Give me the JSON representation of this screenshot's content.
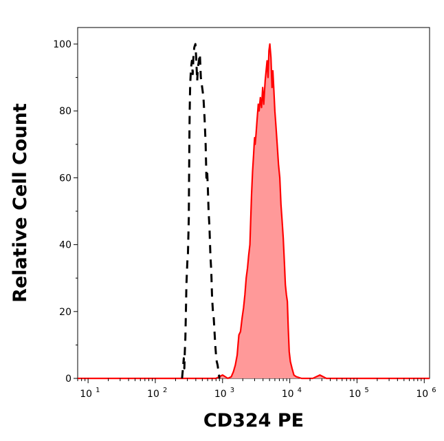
{
  "chart_data": {
    "type": "area",
    "title": "",
    "xlabel": "CD324 PE",
    "ylabel": "Relative Cell Count",
    "x_scale": "log",
    "xlim": [
      7,
      1200000
    ],
    "ylim": [
      -1,
      101
    ],
    "grid": false,
    "x_ticks": [
      {
        "value": 10,
        "base": "10",
        "exp": "1"
      },
      {
        "value": 100,
        "base": "10",
        "exp": "2"
      },
      {
        "value": 1000,
        "base": "10",
        "exp": "3"
      },
      {
        "value": 10000,
        "base": "10",
        "exp": "4"
      },
      {
        "value": 100000,
        "base": "10",
        "exp": "5"
      },
      {
        "value": 1000000,
        "base": "10",
        "exp": "6"
      }
    ],
    "y_ticks": [
      0,
      20,
      40,
      60,
      80,
      100
    ],
    "series": [
      {
        "role": "control",
        "style": "dashed",
        "color": "#000000",
        "points": [
          [
            250,
            0
          ],
          [
            260,
            4
          ],
          [
            265,
            6
          ],
          [
            270,
            3
          ],
          [
            275,
            8
          ],
          [
            280,
            12
          ],
          [
            285,
            20
          ],
          [
            290,
            28
          ],
          [
            300,
            35
          ],
          [
            305,
            36
          ],
          [
            310,
            42
          ],
          [
            315,
            48
          ],
          [
            318,
            60
          ],
          [
            322,
            75
          ],
          [
            325,
            80
          ],
          [
            330,
            88
          ],
          [
            340,
            93
          ],
          [
            350,
            95
          ],
          [
            360,
            91
          ],
          [
            370,
            97
          ],
          [
            380,
            99
          ],
          [
            395,
            100
          ],
          [
            405,
            96
          ],
          [
            420,
            89
          ],
          [
            430,
            93
          ],
          [
            445,
            95
          ],
          [
            460,
            97
          ],
          [
            475,
            90
          ],
          [
            490,
            88
          ],
          [
            505,
            86
          ],
          [
            520,
            84
          ],
          [
            540,
            78
          ],
          [
            560,
            70
          ],
          [
            575,
            60
          ],
          [
            590,
            62
          ],
          [
            605,
            57
          ],
          [
            620,
            50
          ],
          [
            640,
            45
          ],
          [
            660,
            37
          ],
          [
            680,
            32
          ],
          [
            700,
            24
          ],
          [
            720,
            20
          ],
          [
            740,
            18
          ],
          [
            760,
            14
          ],
          [
            780,
            10
          ],
          [
            800,
            7
          ],
          [
            820,
            5
          ],
          [
            845,
            4
          ],
          [
            870,
            2
          ],
          [
            900,
            0
          ]
        ]
      },
      {
        "role": "sample",
        "style": "filled",
        "color": "#ff0000",
        "fill": "#ff9999",
        "points": [
          [
            7,
            0
          ],
          [
            20,
            0
          ],
          [
            60,
            0
          ],
          [
            150,
            0
          ],
          [
            400,
            0
          ],
          [
            800,
            0
          ],
          [
            1000,
            1
          ],
          [
            1200,
            0
          ],
          [
            1350,
            0.5
          ],
          [
            1450,
            2
          ],
          [
            1550,
            4
          ],
          [
            1650,
            7
          ],
          [
            1700,
            10
          ],
          [
            1750,
            13
          ],
          [
            1850,
            14
          ],
          [
            1950,
            18
          ],
          [
            2050,
            21
          ],
          [
            2150,
            25
          ],
          [
            2250,
            30
          ],
          [
            2350,
            33
          ],
          [
            2450,
            37
          ],
          [
            2550,
            40
          ],
          [
            2620,
            47
          ],
          [
            2700,
            55
          ],
          [
            2800,
            62
          ],
          [
            2900,
            67
          ],
          [
            2950,
            70
          ],
          [
            3000,
            72
          ],
          [
            3050,
            70
          ],
          [
            3150,
            73
          ],
          [
            3250,
            77
          ],
          [
            3400,
            82
          ],
          [
            3500,
            80
          ],
          [
            3650,
            84
          ],
          [
            3800,
            81
          ],
          [
            3950,
            87
          ],
          [
            4100,
            82
          ],
          [
            4300,
            89
          ],
          [
            4450,
            92
          ],
          [
            4600,
            95
          ],
          [
            4750,
            90
          ],
          [
            4900,
            98
          ],
          [
            5050,
            100
          ],
          [
            5250,
            96
          ],
          [
            5450,
            87
          ],
          [
            5600,
            92
          ],
          [
            5800,
            86
          ],
          [
            6000,
            80
          ],
          [
            6200,
            76
          ],
          [
            6500,
            70
          ],
          [
            6800,
            64
          ],
          [
            7100,
            60
          ],
          [
            7400,
            52
          ],
          [
            7700,
            47
          ],
          [
            8000,
            42
          ],
          [
            8300,
            35
          ],
          [
            8600,
            28
          ],
          [
            8900,
            25
          ],
          [
            9200,
            23
          ],
          [
            9500,
            15
          ],
          [
            9800,
            8
          ],
          [
            10200,
            5
          ],
          [
            10800,
            3
          ],
          [
            11500,
            1
          ],
          [
            12500,
            0.5
          ],
          [
            15000,
            0
          ],
          [
            22000,
            0
          ],
          [
            28000,
            1
          ],
          [
            35000,
            0
          ],
          [
            55000,
            0
          ],
          [
            100000,
            0
          ],
          [
            200000,
            0
          ],
          [
            500000,
            0
          ],
          [
            1200000,
            0
          ]
        ]
      }
    ]
  }
}
